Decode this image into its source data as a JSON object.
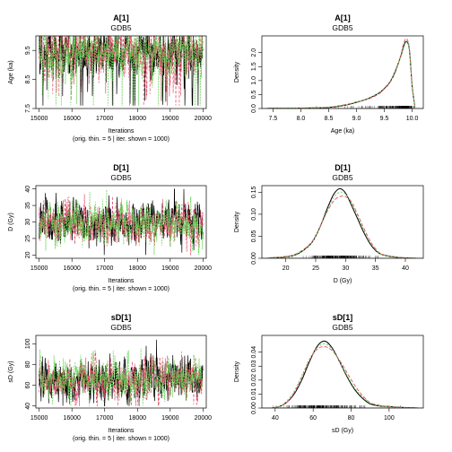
{
  "chart_data": [
    {
      "type": "line",
      "title": "A[1]",
      "subtitle": "GDB5",
      "xlabel": "Iterations",
      "xlabel2": "(orig. thin. = 5 | iter. shown = 1000)",
      "ylabel": "Age (ka)",
      "xlim": [
        14900,
        20100
      ],
      "ylim": [
        7.5,
        10
      ],
      "xticks": [
        15000,
        16000,
        17000,
        18000,
        19000,
        20000
      ],
      "yticks": [
        7.5,
        8.5,
        9.5
      ],
      "series": [
        {
          "color": "#000000",
          "center": 9.55,
          "spread": 0.38,
          "floor": 7.6,
          "ceil": 10.0,
          "dip": 0.06
        },
        {
          "color": "#DF536B",
          "center": 9.55,
          "spread": 0.38,
          "floor": 7.6,
          "ceil": 10.0,
          "dip": 0.06
        },
        {
          "color": "#61D04F",
          "center": 9.55,
          "spread": 0.38,
          "floor": 7.6,
          "ceil": 10.0,
          "dip": 0.06
        }
      ]
    },
    {
      "type": "line",
      "title": "A[1]",
      "subtitle": "GDB5",
      "xlabel": "Age (ka)",
      "ylabel": "Density",
      "xlim": [
        7.3,
        10.2
      ],
      "ylim": [
        0,
        2.6
      ],
      "xticks": [
        7.5,
        8.0,
        8.5,
        9.0,
        9.5,
        10.0
      ],
      "yticks": [
        0.0,
        0.5,
        1.0,
        1.5,
        2.0
      ],
      "series": [
        {
          "color": "#000000",
          "x": [
            7.4,
            7.8,
            8.2,
            8.5,
            8.8,
            9.0,
            9.2,
            9.4,
            9.5,
            9.6,
            9.7,
            9.8,
            9.85,
            9.9,
            9.95,
            10.0,
            10.05
          ],
          "y": [
            0.005,
            0.01,
            0.02,
            0.04,
            0.12,
            0.22,
            0.35,
            0.55,
            0.72,
            0.95,
            1.35,
            1.9,
            2.25,
            2.4,
            2.1,
            0.8,
            0.05
          ]
        },
        {
          "color": "#DF536B",
          "x": [
            7.4,
            7.8,
            8.2,
            8.5,
            8.8,
            9.0,
            9.2,
            9.4,
            9.5,
            9.6,
            9.7,
            9.8,
            9.85,
            9.9,
            9.95,
            10.0,
            10.05
          ],
          "y": [
            0.005,
            0.01,
            0.03,
            0.05,
            0.14,
            0.24,
            0.33,
            0.52,
            0.7,
            0.92,
            1.3,
            1.95,
            2.35,
            2.5,
            2.15,
            0.85,
            0.06
          ]
        },
        {
          "color": "#61D04F",
          "x": [
            7.4,
            7.8,
            8.2,
            8.5,
            8.8,
            9.0,
            9.2,
            9.4,
            9.5,
            9.6,
            9.7,
            9.8,
            9.85,
            9.9,
            9.95,
            10.0,
            10.05
          ],
          "y": [
            0.005,
            0.015,
            0.025,
            0.05,
            0.13,
            0.23,
            0.36,
            0.56,
            0.74,
            0.96,
            1.33,
            1.88,
            2.2,
            2.38,
            2.1,
            0.82,
            0.05
          ]
        }
      ]
    },
    {
      "type": "line",
      "title": "D[1]",
      "subtitle": "GDB5",
      "xlabel": "Iterations",
      "xlabel2": "(orig. thin. = 5 | iter. shown = 1000)",
      "ylabel": "D (Gy)",
      "xlim": [
        14900,
        20100
      ],
      "ylim": [
        19,
        41
      ],
      "xticks": [
        15000,
        16000,
        17000,
        18000,
        19000,
        20000
      ],
      "yticks": [
        20,
        25,
        30,
        35,
        40
      ],
      "series": [
        {
          "color": "#000000",
          "center": 29.5,
          "spread": 2.8,
          "floor": 20,
          "ceil": 40,
          "dip": 0
        },
        {
          "color": "#DF536B",
          "center": 29.5,
          "spread": 2.8,
          "floor": 20,
          "ceil": 40,
          "dip": 0
        },
        {
          "color": "#61D04F",
          "center": 29.5,
          "spread": 2.8,
          "floor": 20,
          "ceil": 40,
          "dip": 0
        }
      ]
    },
    {
      "type": "line",
      "title": "D[1]",
      "subtitle": "GDB5",
      "xlabel": "D (Gy)",
      "ylabel": "Density",
      "xlim": [
        16,
        43
      ],
      "ylim": [
        0,
        0.165
      ],
      "xticks": [
        20,
        25,
        30,
        35,
        40
      ],
      "yticks": [
        0.0,
        0.05,
        0.1,
        0.15
      ],
      "series": [
        {
          "color": "#000000",
          "x": [
            17,
            20,
            22,
            24,
            25,
            26,
            27,
            28,
            29,
            30,
            31,
            32,
            33,
            34,
            35,
            36,
            38,
            40,
            42
          ],
          "y": [
            0.001,
            0.003,
            0.01,
            0.03,
            0.05,
            0.08,
            0.115,
            0.145,
            0.158,
            0.148,
            0.12,
            0.09,
            0.06,
            0.035,
            0.018,
            0.009,
            0.003,
            0.001,
            0.0
          ]
        },
        {
          "color": "#DF536B",
          "x": [
            17,
            20,
            22,
            24,
            25,
            26,
            27,
            28,
            29,
            30,
            31,
            32,
            33,
            34,
            35,
            36,
            38,
            40,
            42
          ],
          "y": [
            0.001,
            0.004,
            0.012,
            0.032,
            0.052,
            0.08,
            0.108,
            0.13,
            0.14,
            0.14,
            0.128,
            0.1,
            0.07,
            0.042,
            0.022,
            0.01,
            0.004,
            0.001,
            0.0
          ]
        },
        {
          "color": "#61D04F",
          "x": [
            17,
            20,
            22,
            24,
            25,
            26,
            27,
            28,
            29,
            30,
            31,
            32,
            33,
            34,
            35,
            36,
            38,
            40,
            42
          ],
          "y": [
            0.001,
            0.003,
            0.011,
            0.03,
            0.05,
            0.078,
            0.11,
            0.138,
            0.15,
            0.146,
            0.125,
            0.095,
            0.065,
            0.038,
            0.02,
            0.009,
            0.003,
            0.001,
            0.0
          ]
        }
      ]
    },
    {
      "type": "line",
      "title": "sD[1]",
      "subtitle": "GDB5",
      "xlabel": "Iterations",
      "xlabel2": "(orig. thin. = 5 | iter. shown = 1000)",
      "ylabel": "sD (Gy)",
      "xlim": [
        14900,
        20100
      ],
      "ylim": [
        38,
        108
      ],
      "xticks": [
        15000,
        16000,
        17000,
        18000,
        19000,
        20000
      ],
      "yticks": [
        40,
        60,
        80,
        100
      ],
      "series": [
        {
          "color": "#000000",
          "center": 66,
          "spread": 9,
          "floor": 40,
          "ceil": 105,
          "dip": 0
        },
        {
          "color": "#DF536B",
          "center": 66,
          "spread": 9,
          "floor": 40,
          "ceil": 105,
          "dip": 0
        },
        {
          "color": "#61D04F",
          "center": 66,
          "spread": 9,
          "floor": 40,
          "ceil": 105,
          "dip": 0
        }
      ]
    },
    {
      "type": "line",
      "title": "sD[1]",
      "subtitle": "GDB5",
      "xlabel": "sD (Gy)",
      "ylabel": "Density",
      "xlim": [
        33,
        118
      ],
      "ylim": [
        0,
        0.052
      ],
      "xticks": [
        40,
        60,
        80,
        100
      ],
      "yticks": [
        0.0,
        0.01,
        0.02,
        0.03,
        0.04
      ],
      "series": [
        {
          "color": "#000000",
          "x": [
            38,
            42,
            46,
            50,
            54,
            58,
            62,
            66,
            70,
            74,
            78,
            82,
            86,
            90,
            95,
            100,
            108,
            116
          ],
          "y": [
            0.0,
            0.001,
            0.004,
            0.01,
            0.02,
            0.033,
            0.044,
            0.048,
            0.043,
            0.033,
            0.022,
            0.013,
            0.007,
            0.003,
            0.0015,
            0.001,
            0.0004,
            0.0
          ]
        },
        {
          "color": "#DF536B",
          "x": [
            38,
            42,
            46,
            50,
            54,
            58,
            62,
            66,
            70,
            74,
            78,
            82,
            86,
            90,
            95,
            100,
            108,
            116
          ],
          "y": [
            0.0,
            0.001,
            0.004,
            0.011,
            0.022,
            0.034,
            0.042,
            0.044,
            0.041,
            0.034,
            0.025,
            0.016,
            0.009,
            0.004,
            0.002,
            0.001,
            0.0003,
            0.0
          ]
        },
        {
          "color": "#61D04F",
          "x": [
            38,
            42,
            46,
            50,
            54,
            58,
            62,
            66,
            70,
            74,
            78,
            82,
            86,
            90,
            95,
            100,
            108,
            116
          ],
          "y": [
            0.0,
            0.001,
            0.005,
            0.012,
            0.023,
            0.035,
            0.043,
            0.046,
            0.042,
            0.033,
            0.023,
            0.014,
            0.008,
            0.004,
            0.0015,
            0.0008,
            0.0003,
            0.0
          ]
        }
      ]
    }
  ]
}
